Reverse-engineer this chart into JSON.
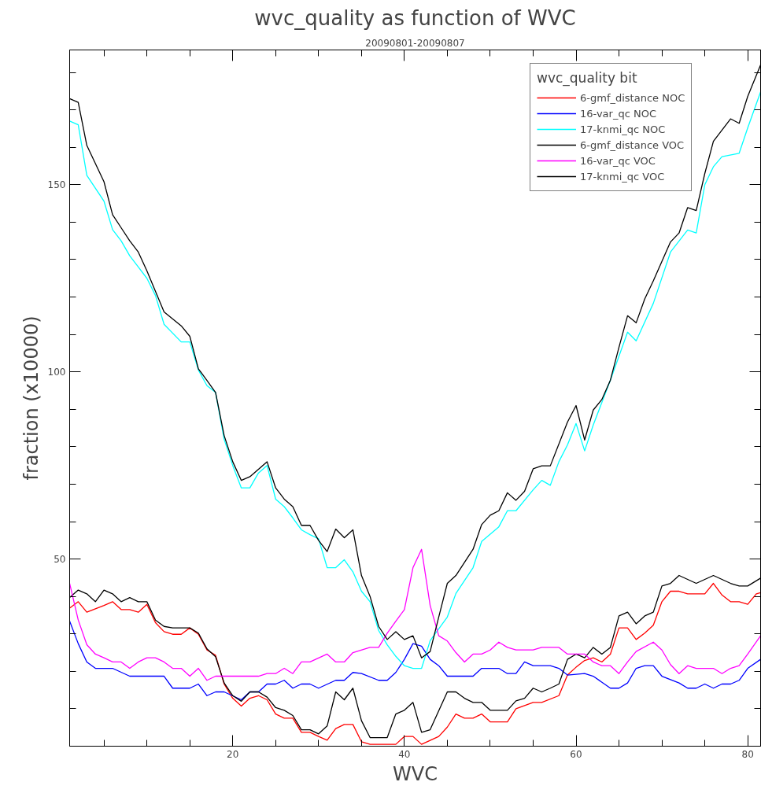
{
  "chart_data": {
    "type": "line",
    "title": "wvc_quality as function of WVC",
    "subtitle": "20090801-20090807",
    "xlabel": "WVC",
    "ylabel": "fraction (x10000)",
    "legend_title": "wvc_quality bit",
    "legend": "top right",
    "line_style": "solid",
    "xlim": [
      1,
      81.5
    ],
    "ylim": [
      0,
      186
    ],
    "xticks": [
      {
        "value": 5,
        "label": null
      },
      {
        "value": 10,
        "label": null
      },
      {
        "value": 15,
        "label": null
      },
      20,
      {
        "value": 25,
        "label": null
      },
      {
        "value": 30,
        "label": null
      },
      {
        "value": 35,
        "label": null
      },
      40,
      {
        "value": 45,
        "label": null
      },
      {
        "value": 50,
        "label": null
      },
      {
        "value": 55,
        "label": null
      },
      60,
      {
        "value": 65,
        "label": null
      },
      {
        "value": 70,
        "label": null
      },
      {
        "value": 75,
        "label": null
      },
      80
    ],
    "yticks": [
      {
        "value": 10,
        "label": null
      },
      {
        "value": 20,
        "label": null
      },
      {
        "value": 30,
        "label": null
      },
      {
        "value": 40,
        "label": null
      },
      50,
      {
        "value": 60,
        "label": null
      },
      {
        "value": 70,
        "label": null
      },
      {
        "value": 80,
        "label": null
      },
      {
        "value": 90,
        "label": null
      },
      100,
      {
        "value": 110,
        "label": null
      },
      {
        "value": 120,
        "label": null
      },
      {
        "value": 130,
        "label": null
      },
      {
        "value": 140,
        "label": null
      },
      150,
      {
        "value": 160,
        "label": null
      },
      {
        "value": 170,
        "label": null
      },
      {
        "value": 180,
        "label": null
      }
    ],
    "series": [
      {
        "name": "6-gmf_distance NOC",
        "color": "#ff0000",
        "x": [
          1,
          2,
          3,
          5,
          6,
          7,
          8,
          9,
          10,
          11,
          12,
          13,
          14,
          15,
          16,
          17,
          18,
          19,
          20,
          21,
          22,
          23,
          24,
          25,
          26,
          27,
          28,
          29,
          30,
          31,
          32,
          33,
          34,
          35,
          36,
          39,
          40,
          41,
          42,
          44,
          45,
          46,
          47,
          48,
          49,
          50,
          52,
          53,
          55,
          56,
          58,
          59,
          60,
          61,
          62,
          63,
          64,
          65,
          66,
          67,
          68,
          69,
          70,
          71,
          72,
          73,
          75,
          76,
          77,
          78,
          79,
          80,
          81,
          81.5
        ],
        "values": [
          36.9,
          38.6,
          35.8,
          37.6,
          38.6,
          36.5,
          36.5,
          35.8,
          37.9,
          33,
          30.6,
          29.9,
          29.9,
          31.6,
          29.9,
          25.7,
          24.3,
          16.6,
          12.8,
          10.7,
          12.8,
          13.5,
          12.4,
          8.6,
          7.5,
          7.5,
          3.7,
          3.7,
          2.6,
          1.6,
          4.7,
          5.8,
          5.8,
          1.2,
          0.5,
          0.5,
          2.6,
          2.6,
          0.5,
          2.6,
          5.1,
          8.6,
          7.5,
          7.5,
          8.6,
          6.5,
          6.5,
          10,
          11.7,
          11.7,
          13.5,
          19,
          21.1,
          22.9,
          23.6,
          22.5,
          24.6,
          31.6,
          31.6,
          28.5,
          30.2,
          32.3,
          38.6,
          41.4,
          41.4,
          40.7,
          40.7,
          43.5,
          40.4,
          38.6,
          38.6,
          37.9,
          40.7,
          41
        ]
      },
      {
        "name": "16-var_qc NOC",
        "color": "#0000ff",
        "x": [
          1,
          2,
          3,
          4,
          6,
          8,
          12,
          13,
          15,
          16,
          17,
          18,
          19,
          21,
          22,
          23,
          24,
          25,
          26,
          27,
          28,
          29,
          30,
          32,
          33,
          34,
          35,
          37,
          38,
          39,
          40,
          41,
          42,
          43,
          44,
          45,
          48,
          49,
          51,
          52,
          53,
          54,
          55,
          57,
          58,
          59,
          61,
          62,
          64,
          65,
          66,
          67,
          68,
          69,
          70,
          72,
          73,
          74,
          75,
          76,
          77,
          78,
          79,
          80,
          81.5
        ],
        "values": [
          33.4,
          27.4,
          22.5,
          20.8,
          20.8,
          18.7,
          18.7,
          15.5,
          15.5,
          16.6,
          13.5,
          14.5,
          14.5,
          12.4,
          14.5,
          14.5,
          16.6,
          16.6,
          17.6,
          15.5,
          16.6,
          16.6,
          15.5,
          17.6,
          17.6,
          19.7,
          19.4,
          17.6,
          17.6,
          19.7,
          23.2,
          27.4,
          26.7,
          23.2,
          21.5,
          18.7,
          18.7,
          20.8,
          20.8,
          19.4,
          19.4,
          22.5,
          21.5,
          21.5,
          20.8,
          19,
          19.4,
          18.7,
          15.5,
          15.5,
          16.9,
          20.8,
          21.5,
          21.5,
          18.7,
          16.9,
          15.5,
          15.5,
          16.6,
          15.5,
          16.6,
          16.6,
          17.6,
          20.8,
          23.2
        ]
      },
      {
        "name": "17-knmi_qc NOC",
        "color": "#00ffff",
        "x": [
          1,
          2,
          3,
          5,
          6,
          7,
          8,
          9,
          10,
          11,
          12,
          14,
          15,
          16,
          17,
          18,
          19,
          20,
          21,
          22,
          23,
          24,
          25,
          26,
          27,
          28,
          29,
          30,
          31,
          32,
          33,
          34,
          35,
          36,
          37,
          38,
          39,
          40,
          41,
          42,
          43,
          45,
          46,
          48,
          49,
          51,
          52,
          53,
          55,
          56,
          57,
          58,
          59,
          60,
          61,
          62,
          64,
          66,
          67,
          69,
          71,
          73,
          74,
          75,
          76,
          77,
          79,
          80,
          81.5
        ],
        "values": [
          167,
          166,
          152.5,
          145.6,
          138,
          135,
          131,
          128,
          125,
          120.4,
          112.7,
          108,
          108,
          100.5,
          96.3,
          94.5,
          82,
          75,
          69,
          69,
          73,
          75,
          66,
          64,
          61,
          57.8,
          56.5,
          55.4,
          47.7,
          47.7,
          49.8,
          46.6,
          41.4,
          38.6,
          30.9,
          27.1,
          24,
          21.5,
          20.8,
          20.8,
          28.2,
          34.5,
          40.8,
          47.7,
          54.7,
          58.6,
          62.9,
          62.9,
          68.5,
          71,
          69.7,
          76,
          80.5,
          86.2,
          78.9,
          85.8,
          97.8,
          110.6,
          108.3,
          118.3,
          132,
          137.9,
          137.1,
          150,
          154.8,
          157.5,
          158.4,
          165.2,
          174.8
        ]
      },
      {
        "name": "6-gmf_distance VOC",
        "color": "#000000",
        "x": [
          1,
          2,
          3,
          4,
          5,
          6,
          7,
          8,
          9,
          10,
          11,
          12,
          13,
          15,
          16,
          17,
          18,
          19,
          20,
          21,
          22,
          23,
          24,
          25,
          26,
          27,
          28,
          29,
          30,
          31,
          32,
          33,
          34,
          35,
          36,
          38,
          39,
          40,
          41,
          42,
          43,
          45,
          46,
          47,
          48,
          49,
          50,
          52,
          53,
          54,
          55,
          56,
          57,
          58,
          59,
          60,
          61,
          62,
          63,
          64,
          65,
          66,
          67,
          68,
          69,
          70,
          71,
          72,
          74,
          76,
          78,
          79,
          80,
          81.5
        ],
        "values": [
          39.7,
          41.7,
          40.7,
          38.6,
          41.7,
          40.7,
          38.6,
          39.7,
          38.6,
          38.6,
          33.7,
          32,
          31.6,
          31.6,
          30.2,
          26,
          23.9,
          16.9,
          13.5,
          12,
          14.5,
          14.5,
          13.1,
          10.3,
          9.6,
          8.2,
          4.4,
          4.4,
          3.3,
          5.4,
          14.5,
          12.4,
          15.5,
          6.8,
          2.3,
          2.3,
          8.6,
          9.6,
          11.7,
          3.7,
          4.4,
          14.5,
          14.5,
          12.8,
          11.7,
          11.7,
          9.6,
          9.6,
          12.1,
          12.8,
          15.5,
          14.5,
          15.5,
          16.6,
          23.2,
          24.6,
          23.6,
          26.4,
          24.6,
          26.4,
          34.8,
          35.8,
          32.7,
          34.8,
          35.8,
          42.8,
          43.5,
          45.6,
          43.5,
          45.6,
          43.5,
          42.8,
          42.8,
          44.9
        ]
      },
      {
        "name": "16-var_qc VOC",
        "color": "#ff00ff",
        "x": [
          1,
          2,
          3,
          4,
          5,
          6,
          7,
          8,
          9,
          10,
          11,
          12,
          13,
          14,
          15,
          16,
          17,
          18,
          23,
          24,
          25,
          26,
          27,
          28,
          29,
          31,
          32,
          33,
          34,
          36,
          37,
          38,
          39,
          40,
          41,
          42,
          43,
          44,
          45,
          46,
          47,
          48,
          49,
          50,
          51,
          52,
          53,
          55,
          56,
          58,
          59,
          61,
          62,
          63,
          64,
          65,
          66,
          67,
          69,
          70,
          71,
          72,
          73,
          74,
          76,
          77,
          78,
          79,
          80,
          81.5
        ],
        "values": [
          43.5,
          33.7,
          27.1,
          24.6,
          23.6,
          22.5,
          22.5,
          20.8,
          22.5,
          23.6,
          23.6,
          22.5,
          20.8,
          20.8,
          18.7,
          20.8,
          17.6,
          18.7,
          18.7,
          19.4,
          19.4,
          20.8,
          19.4,
          22.5,
          22.5,
          24.6,
          22.5,
          22.5,
          25,
          26.4,
          26.4,
          30.2,
          33.4,
          36.5,
          47.7,
          52.6,
          37.6,
          29.5,
          28.1,
          25,
          22.5,
          24.6,
          24.6,
          25.7,
          27.8,
          26.4,
          25.7,
          25.7,
          26.4,
          26.4,
          24.6,
          24.6,
          22.5,
          21.5,
          21.5,
          19.4,
          22.5,
          25.3,
          27.8,
          25.7,
          21.8,
          19.4,
          21.5,
          20.8,
          20.8,
          19.4,
          20.8,
          21.5,
          24.6,
          29.5
        ]
      },
      {
        "name": "17-knmi_qc VOC",
        "color": "#000000",
        "x": [
          1,
          2,
          3,
          5,
          6,
          7,
          8,
          9,
          10,
          12,
          14,
          15,
          16,
          17,
          18,
          19,
          20,
          21,
          22,
          23,
          24,
          25,
          26,
          27,
          28,
          29,
          30,
          31,
          32,
          33,
          34,
          35,
          36,
          37,
          38,
          39,
          40,
          41,
          42,
          43,
          44,
          45,
          46,
          48,
          49,
          50,
          51,
          52,
          53,
          54,
          55,
          56,
          57,
          59,
          60,
          61,
          62,
          63,
          64,
          65,
          66,
          67,
          68,
          69,
          71,
          72,
          73,
          74,
          75,
          76,
          78,
          79,
          80,
          81.5
        ],
        "values": [
          173,
          172,
          160.5,
          150.8,
          142,
          138.5,
          135,
          132,
          127,
          116,
          112.3,
          109.5,
          100.8,
          97.7,
          94.5,
          83,
          76,
          71,
          72,
          74,
          76,
          69,
          66,
          64,
          59,
          59,
          55,
          52,
          58,
          55.7,
          57.8,
          45.6,
          40,
          32,
          28.5,
          30.6,
          28.5,
          29.5,
          23.6,
          25.3,
          34.5,
          43.5,
          45.6,
          52.6,
          59.2,
          61.7,
          62.9,
          67.7,
          65.7,
          68.1,
          74.1,
          74.9,
          74.9,
          86.6,
          91,
          81.8,
          89.8,
          92.6,
          97.8,
          106.6,
          115,
          113.1,
          119.5,
          124.3,
          134.7,
          137.1,
          143.9,
          143.1,
          153,
          161.6,
          167.6,
          166.4,
          173.6,
          182
        ]
      }
    ]
  }
}
